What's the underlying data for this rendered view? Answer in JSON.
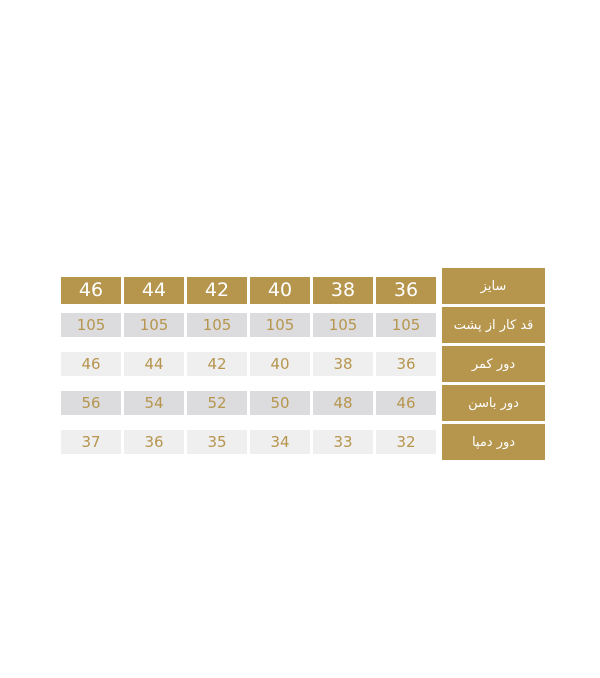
{
  "ui": {
    "colors": {
      "page_bg": "#ffffff",
      "gold": "#b6954d",
      "header_text": "#ffffff",
      "label_text": "#ffffff",
      "value_text": "#b6954d",
      "row_shade_dark": "#dcdcde",
      "row_shade_light": "#efeff0"
    }
  },
  "chart_data": {
    "type": "table",
    "direction": "rtl",
    "header_label": "سایز",
    "sizes": [
      "36",
      "38",
      "40",
      "42",
      "44",
      "46"
    ],
    "rows": [
      {
        "label": "قد کار از پشت",
        "shade": "dark",
        "values": [
          "105",
          "105",
          "105",
          "105",
          "105",
          "105"
        ]
      },
      {
        "label": "دور کمر",
        "shade": "light",
        "values": [
          "36",
          "38",
          "40",
          "42",
          "44",
          "46"
        ]
      },
      {
        "label": "دور باسن",
        "shade": "dark",
        "values": [
          "46",
          "48",
          "50",
          "52",
          "54",
          "56"
        ]
      },
      {
        "label": "دور دمپا",
        "shade": "light",
        "values": [
          "32",
          "33",
          "34",
          "35",
          "36",
          "37"
        ]
      }
    ]
  }
}
